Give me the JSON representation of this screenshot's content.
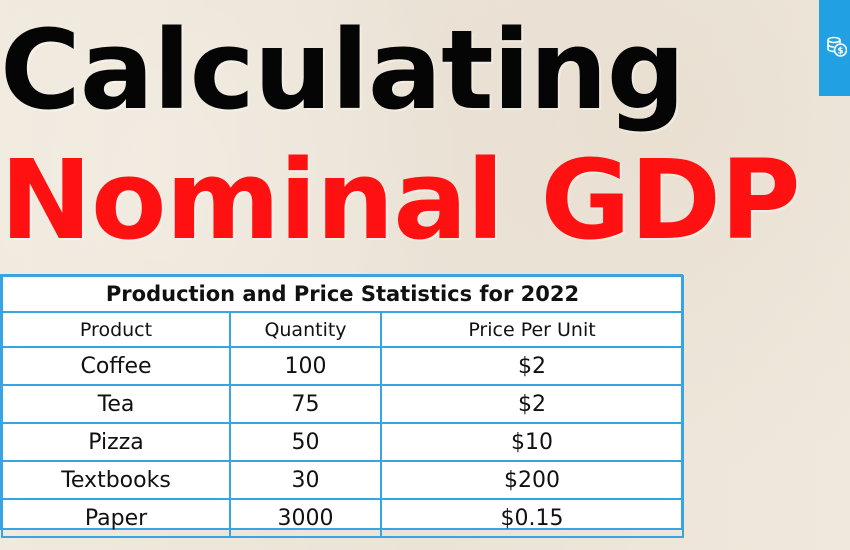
{
  "title": {
    "line1": "Calculating",
    "line2": "Nominal GDP"
  },
  "badge": {
    "icon": "coins-icon",
    "color": "#21a0e3"
  },
  "table": {
    "caption": "Production and Price Statistics for 2022",
    "headers": [
      "Product",
      "Quantity",
      "Price Per Unit"
    ],
    "rows": [
      [
        "Coffee",
        "100",
        "$2"
      ],
      [
        "Tea",
        "75",
        "$2"
      ],
      [
        "Pizza",
        "50",
        "$10"
      ],
      [
        "Textbooks",
        "30",
        "$200"
      ],
      [
        "Paper",
        "3000",
        "$0.15"
      ]
    ]
  },
  "colors": {
    "title_black": "#050505",
    "title_red": "#ff1111",
    "table_border": "#38a4e2",
    "background": "#efe8dc"
  }
}
